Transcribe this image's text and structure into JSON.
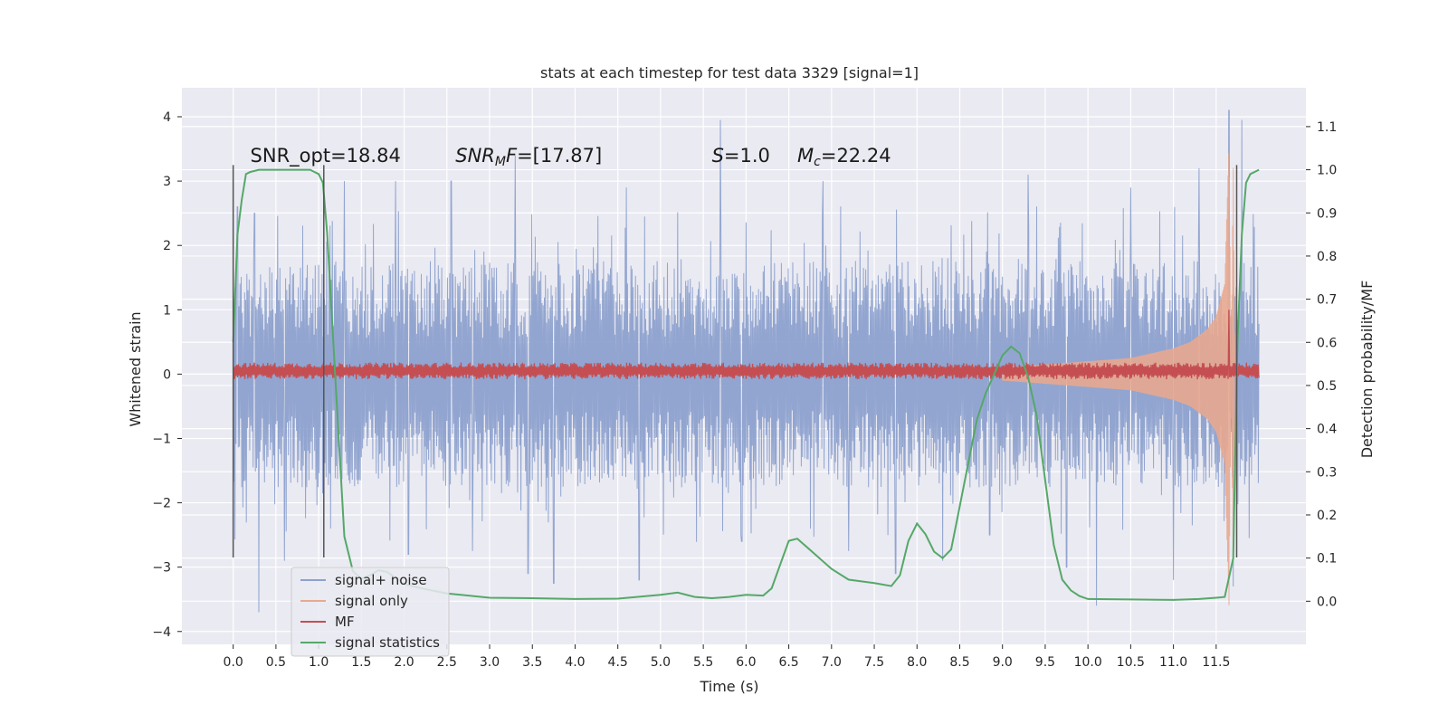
{
  "chart_data": {
    "type": "line",
    "title": "stats at each timestep for test data 3329 [signal=1]",
    "xlabel": "Time (s)",
    "ylabel": "Whitened strain",
    "y2label": "Detection probability/MF",
    "xlim": [
      -0.6,
      12.55
    ],
    "ylim": [
      -4.2,
      4.45
    ],
    "y2lim": [
      -0.1,
      1.19
    ],
    "x_ticks": [
      0.0,
      0.5,
      1.0,
      1.5,
      2.0,
      2.5,
      3.0,
      3.5,
      4.0,
      4.5,
      5.0,
      5.5,
      6.0,
      6.5,
      7.0,
      7.5,
      8.0,
      8.5,
      9.0,
      9.5,
      10.0,
      10.5,
      11.0,
      11.5
    ],
    "x_tick_labels": [
      "0.0",
      "0.5",
      "1.0",
      "1.5",
      "2.0",
      "2.5",
      "3.0",
      "3.5",
      "4.0",
      "4.5",
      "5.0",
      "5.5",
      "6.0",
      "6.5",
      "7.0",
      "7.5",
      "8.0",
      "8.5",
      "9.0",
      "9.5",
      "10.0",
      "10.5",
      "11.0",
      "11.5"
    ],
    "y_ticks": [
      4,
      3,
      2,
      1,
      0,
      -1,
      -2,
      -3,
      -4
    ],
    "y_tick_labels": [
      "4",
      "3",
      "2",
      "1",
      "0",
      "−1",
      "−2",
      "−3",
      "−4"
    ],
    "y2_ticks": [
      1.1,
      1.0,
      0.9,
      0.8,
      0.7,
      0.6,
      0.5,
      0.4,
      0.3,
      0.2,
      0.1,
      0.0
    ],
    "y2_tick_labels": [
      "1.1",
      "1.0",
      "0.9",
      "0.8",
      "0.7",
      "0.6",
      "0.5",
      "0.4",
      "0.3",
      "0.2",
      "0.1",
      "0.0"
    ],
    "grid": true,
    "legend_position": "lower-left",
    "annotations": [
      {
        "text": "SNR_opt=18.84",
        "x": 0.2,
        "y": 3.3
      },
      {
        "text": "SNR_MF=[17.87]",
        "x": 2.6,
        "y": 3.3
      },
      {
        "text": "S=1.0",
        "x": 5.6,
        "y": 3.3
      },
      {
        "text": "M_c=22.24",
        "x": 6.6,
        "y": 3.3
      }
    ],
    "vlines": [
      {
        "x": 0.0,
        "ymin": -2.85,
        "ymax": 3.25
      },
      {
        "x": 1.06,
        "ymin": -2.85,
        "ymax": 3.25
      },
      {
        "x": 11.74,
        "ymin": -2.85,
        "ymax": 3.25
      }
    ],
    "series": [
      {
        "name": "signal+ noise",
        "color": "#8da1cd",
        "axis": "left",
        "x_start": 0.0,
        "x_end": 12.0,
        "envelope_typical": 1.6,
        "peaks": [
          [
            0.05,
            2.6
          ],
          [
            0.25,
            2.5
          ],
          [
            0.3,
            -3.7
          ],
          [
            0.6,
            -2.9
          ],
          [
            1.3,
            3.0
          ],
          [
            1.9,
            3.0
          ],
          [
            2.05,
            -2.8
          ],
          [
            2.55,
            3.0
          ],
          [
            2.8,
            -2.75
          ],
          [
            3.3,
            3.4
          ],
          [
            3.45,
            -3.1
          ],
          [
            3.75,
            -3.25
          ],
          [
            4.6,
            2.9
          ],
          [
            4.75,
            -3.2
          ],
          [
            5.7,
            3.95
          ],
          [
            5.95,
            -2.6
          ],
          [
            6.9,
            3.0
          ],
          [
            7.2,
            -2.75
          ],
          [
            7.75,
            -3.1
          ],
          [
            8.3,
            -2.9
          ],
          [
            8.85,
            -2.5
          ],
          [
            9.3,
            3.1
          ],
          [
            9.75,
            -3.0
          ],
          [
            10.1,
            -3.6
          ],
          [
            10.5,
            2.9
          ],
          [
            11.0,
            -3.2
          ],
          [
            11.3,
            3.2
          ],
          [
            11.65,
            4.1
          ],
          [
            11.7,
            -3.3
          ],
          [
            11.8,
            3.95
          ]
        ]
      },
      {
        "name": "signal only",
        "color": "#e8a98f",
        "axis": "left",
        "x": [
          9.0,
          9.5,
          10.0,
          10.5,
          11.0,
          11.2,
          11.4,
          11.5,
          11.6,
          11.65,
          11.7,
          11.72
        ],
        "envelope": [
          0.1,
          0.15,
          0.2,
          0.25,
          0.4,
          0.5,
          0.7,
          0.9,
          1.4,
          3.6,
          -3.3,
          0.0
        ]
      },
      {
        "name": "MF",
        "color": "#c44e52",
        "axis": "left",
        "x_start": 0.0,
        "x_end": 12.0,
        "baseline": 0.05,
        "amplitude": 0.13,
        "spike": {
          "x": 11.65,
          "value": 1.0
        }
      },
      {
        "name": "signal statistics",
        "color": "#55a868",
        "axis": "right",
        "x": [
          0.0,
          0.05,
          0.1,
          0.15,
          0.2,
          0.3,
          0.5,
          0.7,
          0.9,
          0.95,
          1.0,
          1.05,
          1.1,
          1.2,
          1.3,
          1.4,
          1.5,
          1.6,
          1.7,
          1.8,
          2.0,
          2.2,
          2.5,
          3.0,
          3.5,
          4.0,
          4.5,
          5.0,
          5.2,
          5.4,
          5.6,
          5.8,
          6.0,
          6.2,
          6.3,
          6.4,
          6.5,
          6.6,
          6.8,
          7.0,
          7.2,
          7.5,
          7.7,
          7.8,
          7.9,
          8.0,
          8.1,
          8.2,
          8.3,
          8.4,
          8.5,
          8.6,
          8.7,
          8.8,
          9.0,
          9.1,
          9.2,
          9.3,
          9.4,
          9.5,
          9.6,
          9.7,
          9.8,
          9.9,
          10.0,
          10.5,
          11.0,
          11.3,
          11.5,
          11.6,
          11.7,
          11.75,
          11.8,
          11.85,
          11.9,
          11.95,
          12.0
        ],
        "y": [
          0.6,
          0.85,
          0.93,
          0.99,
          0.995,
          1.0,
          1.0,
          1.0,
          1.0,
          0.995,
          0.99,
          0.97,
          0.85,
          0.5,
          0.15,
          0.07,
          0.052,
          0.06,
          0.072,
          0.068,
          0.04,
          0.03,
          0.018,
          0.008,
          0.007,
          0.005,
          0.006,
          0.015,
          0.02,
          0.01,
          0.007,
          0.01,
          0.015,
          0.013,
          0.03,
          0.085,
          0.14,
          0.145,
          0.11,
          0.075,
          0.05,
          0.042,
          0.035,
          0.06,
          0.14,
          0.18,
          0.155,
          0.115,
          0.1,
          0.12,
          0.22,
          0.32,
          0.42,
          0.48,
          0.57,
          0.59,
          0.575,
          0.52,
          0.43,
          0.28,
          0.13,
          0.05,
          0.025,
          0.012,
          0.005,
          0.004,
          0.003,
          0.005,
          0.008,
          0.01,
          0.1,
          0.6,
          0.85,
          0.97,
          0.99,
          0.995,
          1.0
        ]
      }
    ]
  }
}
